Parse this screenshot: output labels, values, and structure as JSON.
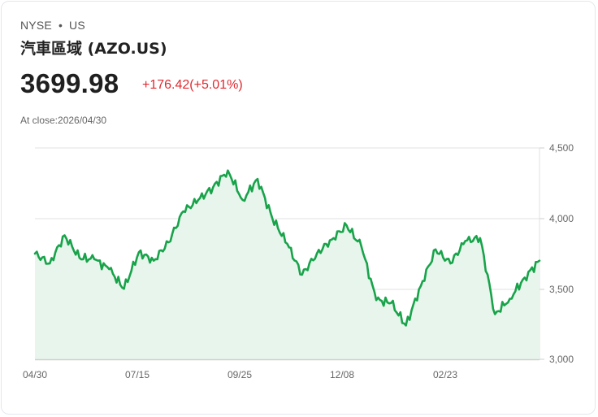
{
  "header": {
    "exchange": "NYSE",
    "separator": "•",
    "market": "US",
    "title": "汽車區域 (AZO.US)",
    "price": "3699.98",
    "change": "+176.42(+5.01%)",
    "close_label": "At close:2026/04/30"
  },
  "colors": {
    "line": "#18a34a",
    "fill": "#e6f5ec",
    "change_negative_or_up": "#e0282e",
    "grid": "#dddddd"
  },
  "chart_data": {
    "type": "area",
    "title": "",
    "xlabel": "",
    "ylabel": "",
    "ylim": [
      3000,
      4500
    ],
    "yticks": [
      "4,500",
      "4,000",
      "3,500",
      "3,000"
    ],
    "xticks": [
      "04/30",
      "07/15",
      "09/25",
      "12/08",
      "02/23"
    ],
    "grid": true,
    "y_axis_position": "right",
    "x": [
      "04/30",
      "05/08",
      "05/20",
      "06/02",
      "06/14",
      "06/26",
      "07/08",
      "07/15",
      "07/25",
      "08/05",
      "08/15",
      "08/26",
      "09/05",
      "09/15",
      "09/25",
      "10/06",
      "10/17",
      "10/28",
      "11/08",
      "11/18",
      "11/28",
      "12/08",
      "12/18",
      "12/30",
      "01/10",
      "01/22",
      "02/02",
      "02/12",
      "02/23",
      "03/05",
      "03/16",
      "03/27",
      "04/08",
      "04/18",
      "04/30"
    ],
    "values": [
      3750,
      3680,
      3880,
      3720,
      3710,
      3640,
      3500,
      3760,
      3700,
      3830,
      4050,
      4130,
      4220,
      4340,
      4130,
      4280,
      4000,
      3820,
      3600,
      3750,
      3850,
      3950,
      3800,
      3420,
      3400,
      3240,
      3520,
      3780,
      3680,
      3840,
      3860,
      3320,
      3430,
      3580,
      3700
    ]
  }
}
